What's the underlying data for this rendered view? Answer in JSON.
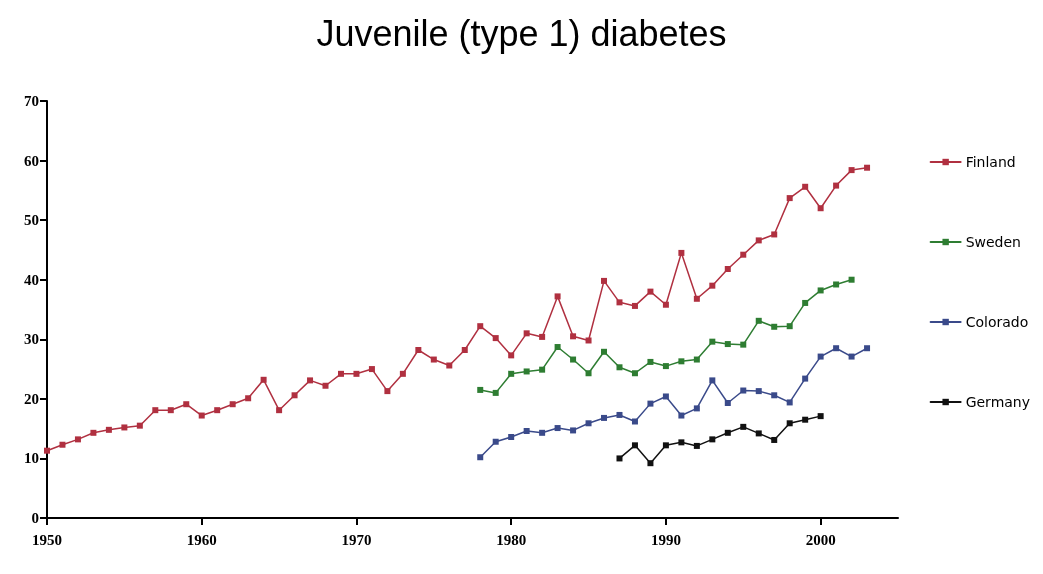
{
  "chart_data": {
    "type": "line",
    "title": "Juvenile (type 1) diabetes",
    "xlim": [
      1950,
      2005
    ],
    "xticks": [
      1950,
      1960,
      1970,
      1980,
      1990,
      2000
    ],
    "ylim": [
      0,
      70
    ],
    "yticks": [
      0,
      10,
      20,
      30,
      40,
      50,
      60,
      70
    ],
    "grid": false,
    "legend": "right",
    "marker": "square",
    "line_style": "solid",
    "series": [
      {
        "name": "Finland",
        "color": "#b03040",
        "x": [
          1950,
          1951,
          1952,
          1953,
          1954,
          1955,
          1956,
          1957,
          1958,
          1959,
          1960,
          1961,
          1962,
          1963,
          1964,
          1965,
          1966,
          1967,
          1968,
          1969,
          1970,
          1971,
          1972,
          1973,
          1974,
          1975,
          1976,
          1977,
          1978,
          1979,
          1980,
          1981,
          1982,
          1983,
          1984,
          1985,
          1986,
          1987,
          1988,
          1989,
          1990,
          1991,
          1992,
          1993,
          1994,
          1995,
          1996,
          1997,
          1998,
          1999,
          2000,
          2001,
          2002,
          2003
        ],
        "values": [
          11.3,
          12.3,
          13.2,
          14.3,
          14.8,
          15.2,
          15.5,
          18.1,
          18.1,
          19.1,
          17.2,
          18.1,
          19.1,
          20.1,
          23.2,
          18.1,
          20.6,
          23.1,
          22.2,
          24.2,
          24.2,
          25,
          21.3,
          24.2,
          28.2,
          26.6,
          25.6,
          28.2,
          32.2,
          30.2,
          27.3,
          31,
          30.4,
          37.2,
          30.5,
          29.8,
          39.8,
          36.2,
          35.6,
          38,
          35.8,
          44.5,
          36.8,
          39,
          41.8,
          44.2,
          46.6,
          47.6,
          53.7,
          55.6,
          52,
          55.8,
          58.4,
          58.8
        ]
      },
      {
        "name": "Sweden",
        "color": "#2e7d32",
        "x": [
          1978,
          1979,
          1980,
          1981,
          1982,
          1983,
          1984,
          1985,
          1986,
          1987,
          1988,
          1989,
          1990,
          1991,
          1992,
          1993,
          1994,
          1995,
          1996,
          1997,
          1998,
          1999,
          2000,
          2001,
          2002
        ],
        "values": [
          21.5,
          21,
          24.2,
          24.6,
          24.9,
          28.7,
          26.6,
          24.3,
          27.9,
          25.3,
          24.3,
          26.2,
          25.5,
          26.3,
          26.6,
          29.6,
          29.2,
          29.1,
          33.1,
          32.1,
          32.2,
          36.1,
          38.2,
          39.2,
          40
        ]
      },
      {
        "name": "Colorado",
        "color": "#3a4a8a",
        "x": [
          1978,
          1979,
          1980,
          1981,
          1982,
          1983,
          1984,
          1985,
          1986,
          1987,
          1988,
          1989,
          1990,
          1991,
          1992,
          1993,
          1994,
          1995,
          1996,
          1997,
          1998,
          1999,
          2000,
          2001,
          2002,
          2003
        ],
        "values": [
          10.2,
          12.8,
          13.6,
          14.6,
          14.3,
          15.1,
          14.7,
          15.9,
          16.8,
          17.3,
          16.2,
          19.2,
          20.4,
          17.2,
          18.4,
          23.1,
          19.3,
          21.4,
          21.3,
          20.6,
          19.4,
          23.4,
          27.1,
          28.5,
          27.1,
          28.5
        ]
      },
      {
        "name": "Germany",
        "color": "#111111",
        "x": [
          1987,
          1988,
          1989,
          1990,
          1991,
          1992,
          1993,
          1994,
          1995,
          1996,
          1997,
          1998,
          1999,
          2000
        ],
        "values": [
          10,
          12.2,
          9.2,
          12.2,
          12.7,
          12.1,
          13.2,
          14.3,
          15.3,
          14.2,
          13.1,
          15.9,
          16.5,
          17.1
        ]
      }
    ]
  }
}
